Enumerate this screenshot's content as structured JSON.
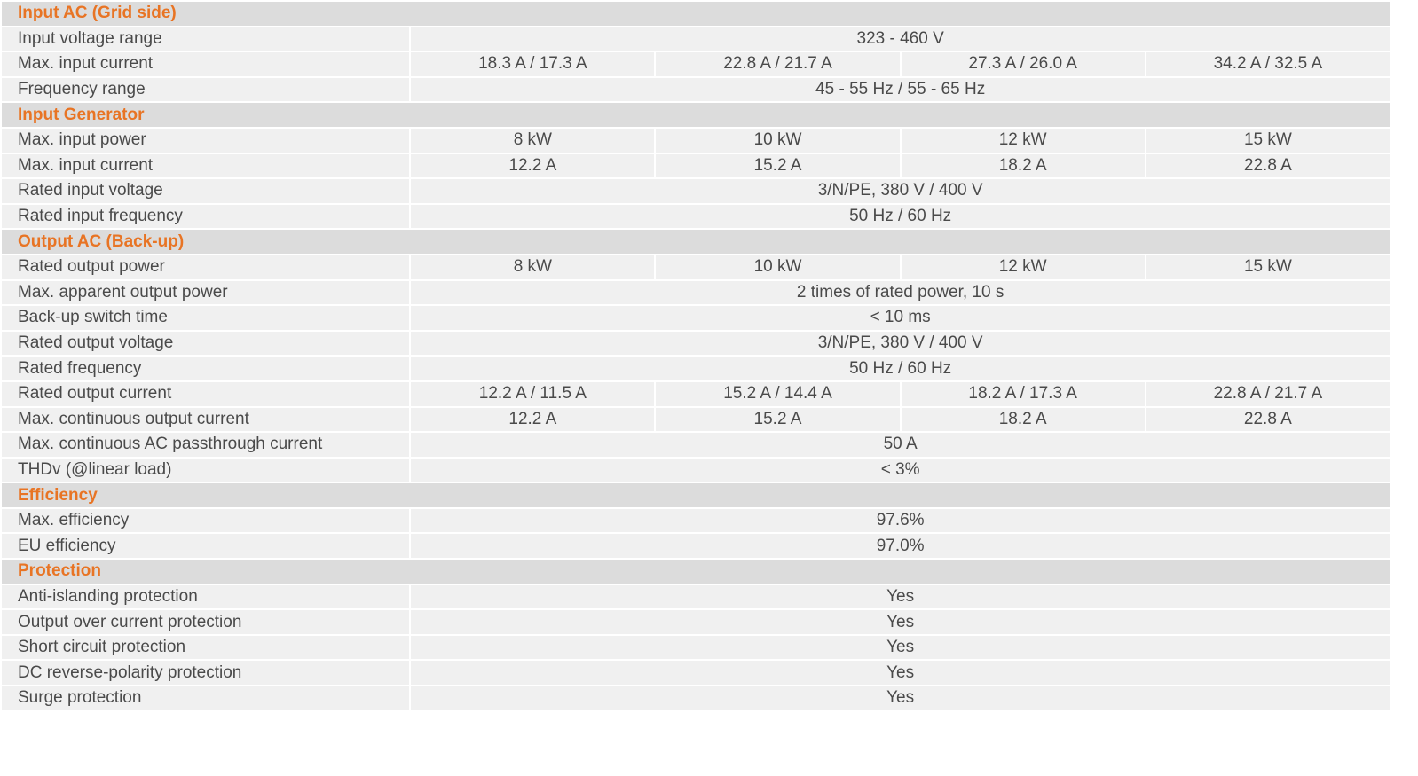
{
  "sections": [
    {
      "title": "Input AC (Grid side)",
      "rows": [
        {
          "label": "Input voltage range",
          "values": [
            "323 - 460 V"
          ]
        },
        {
          "label": "Max. input current",
          "values": [
            "18.3 A / 17.3 A",
            "22.8 A / 21.7 A",
            "27.3 A / 26.0 A",
            "34.2 A / 32.5 A"
          ]
        },
        {
          "label": "Frequency range",
          "values": [
            "45 - 55 Hz / 55 - 65 Hz"
          ]
        }
      ]
    },
    {
      "title": "Input Generator",
      "rows": [
        {
          "label": "Max. input power",
          "values": [
            "8 kW",
            "10 kW",
            "12 kW",
            "15 kW"
          ]
        },
        {
          "label": "Max. input current",
          "values": [
            "12.2 A",
            "15.2 A",
            "18.2 A",
            "22.8 A"
          ]
        },
        {
          "label": "Rated input voltage",
          "values": [
            "3/N/PE, 380 V / 400 V"
          ]
        },
        {
          "label": "Rated input frequency",
          "values": [
            "50 Hz / 60 Hz"
          ]
        }
      ]
    },
    {
      "title": "Output AC (Back-up)",
      "rows": [
        {
          "label": "Rated output power",
          "values": [
            "8 kW",
            "10 kW",
            "12 kW",
            "15 kW"
          ]
        },
        {
          "label": "Max. apparent output power",
          "values": [
            "2 times of rated power, 10 s"
          ]
        },
        {
          "label": "Back-up switch time",
          "values": [
            "< 10 ms"
          ]
        },
        {
          "label": "Rated output voltage",
          "values": [
            "3/N/PE, 380 V / 400 V"
          ]
        },
        {
          "label": "Rated frequency",
          "values": [
            "50 Hz / 60 Hz"
          ]
        },
        {
          "label": "Rated output current",
          "values": [
            "12.2 A / 11.5 A",
            "15.2 A / 14.4 A",
            "18.2 A / 17.3 A",
            "22.8 A / 21.7 A"
          ]
        },
        {
          "label": "Max. continuous output current",
          "values": [
            "12.2 A",
            "15.2 A",
            "18.2 A",
            "22.8 A"
          ]
        },
        {
          "label": "Max. continuous AC passthrough current",
          "values": [
            "50 A"
          ]
        },
        {
          "label": "THDv (@linear load)",
          "values": [
            "< 3%"
          ]
        }
      ]
    },
    {
      "title": "Efficiency",
      "rows": [
        {
          "label": "Max. efficiency",
          "values": [
            "97.6%"
          ]
        },
        {
          "label": "EU efficiency",
          "values": [
            "97.0%"
          ]
        }
      ]
    },
    {
      "title": "Protection",
      "rows": [
        {
          "label": "Anti-islanding protection",
          "values": [
            "Yes"
          ]
        },
        {
          "label": "Output over current protection",
          "values": [
            "Yes"
          ]
        },
        {
          "label": "Short circuit protection",
          "values": [
            "Yes"
          ]
        },
        {
          "label": "DC reverse-polarity protection",
          "values": [
            "Yes"
          ]
        },
        {
          "label": "Surge protection",
          "values": [
            "Yes"
          ]
        }
      ]
    }
  ],
  "colors": {
    "section_bg": "#dcdcdc",
    "row_bg": "#f0f0f0",
    "section_text": "#e87424",
    "body_text": "#4a4a4a"
  }
}
